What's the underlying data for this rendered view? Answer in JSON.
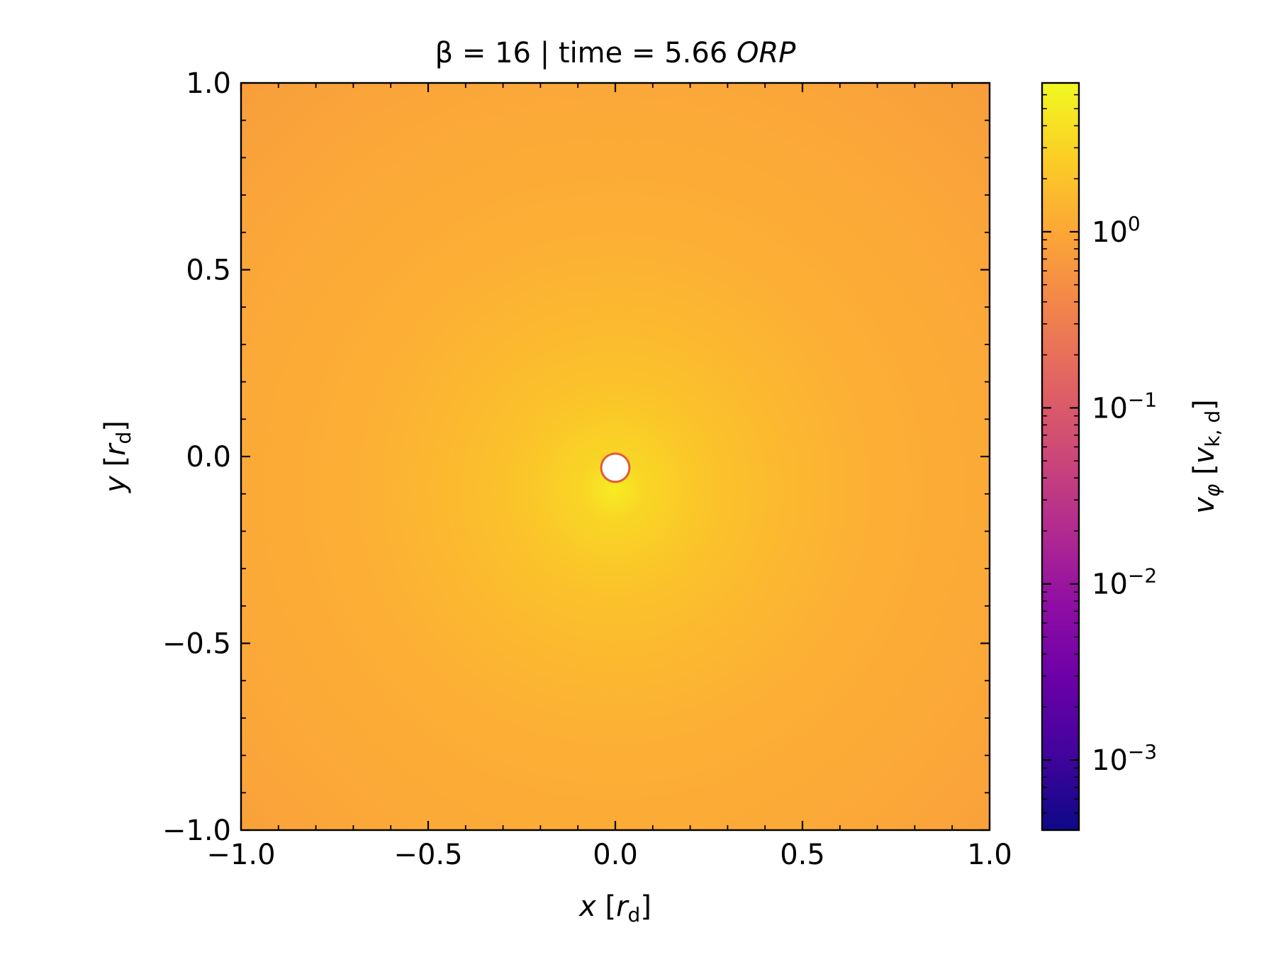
{
  "chart_data": {
    "type": "heatmap",
    "title": {
      "prefix": "β = 16 | time = 5.66 ",
      "unit": "ORP"
    },
    "xlabel": {
      "var": "x",
      "open": " [",
      "sub_var": "r",
      "sub": "d",
      "close": "]"
    },
    "ylabel": {
      "var": "y",
      "open": " [",
      "sub_var": "r",
      "sub": "d",
      "close": "]"
    },
    "xlim": [
      -1.0,
      1.0
    ],
    "ylim": [
      -1.0,
      1.0
    ],
    "xticks": [
      -1.0,
      -0.5,
      0.0,
      0.5,
      1.0
    ],
    "yticks": [
      -1.0,
      -0.5,
      0.0,
      0.5,
      1.0
    ],
    "xtick_labels": [
      "−1.0",
      "−0.5",
      "0.0",
      "0.5",
      "1.0"
    ],
    "ytick_labels": [
      "−1.0",
      "−0.5",
      "0.0",
      "0.5",
      "1.0"
    ],
    "minor_tick_step": 0.1,
    "grid": false,
    "colorscale": "plasma",
    "colorbar": {
      "scale": "log",
      "range": [
        0.0004,
        7
      ],
      "ticks": [
        0.001,
        0.01,
        0.1,
        1
      ],
      "tick_labels": [
        {
          "base": "10",
          "exp": "−3"
        },
        {
          "base": "10",
          "exp": "−2"
        },
        {
          "base": "10",
          "exp": "−1"
        },
        {
          "base": "10",
          "exp": "0"
        }
      ],
      "label": {
        "var": "v",
        "var_sub": "φ",
        "open": " [",
        "unit_var": "v",
        "unit_sub": "k, d",
        "close": "]"
      }
    },
    "field": {
      "description_values": [
        {
          "r": 0.0,
          "value": 3.0
        },
        {
          "r": 0.15,
          "value": 2.0
        },
        {
          "r": 0.5,
          "value": 1.45
        },
        {
          "r": 1.0,
          "value": 1.2
        },
        {
          "r": 1.41,
          "value": 1.1
        }
      ],
      "hole": {
        "x": 0.0,
        "y": -0.03,
        "r": 0.035
      }
    }
  }
}
